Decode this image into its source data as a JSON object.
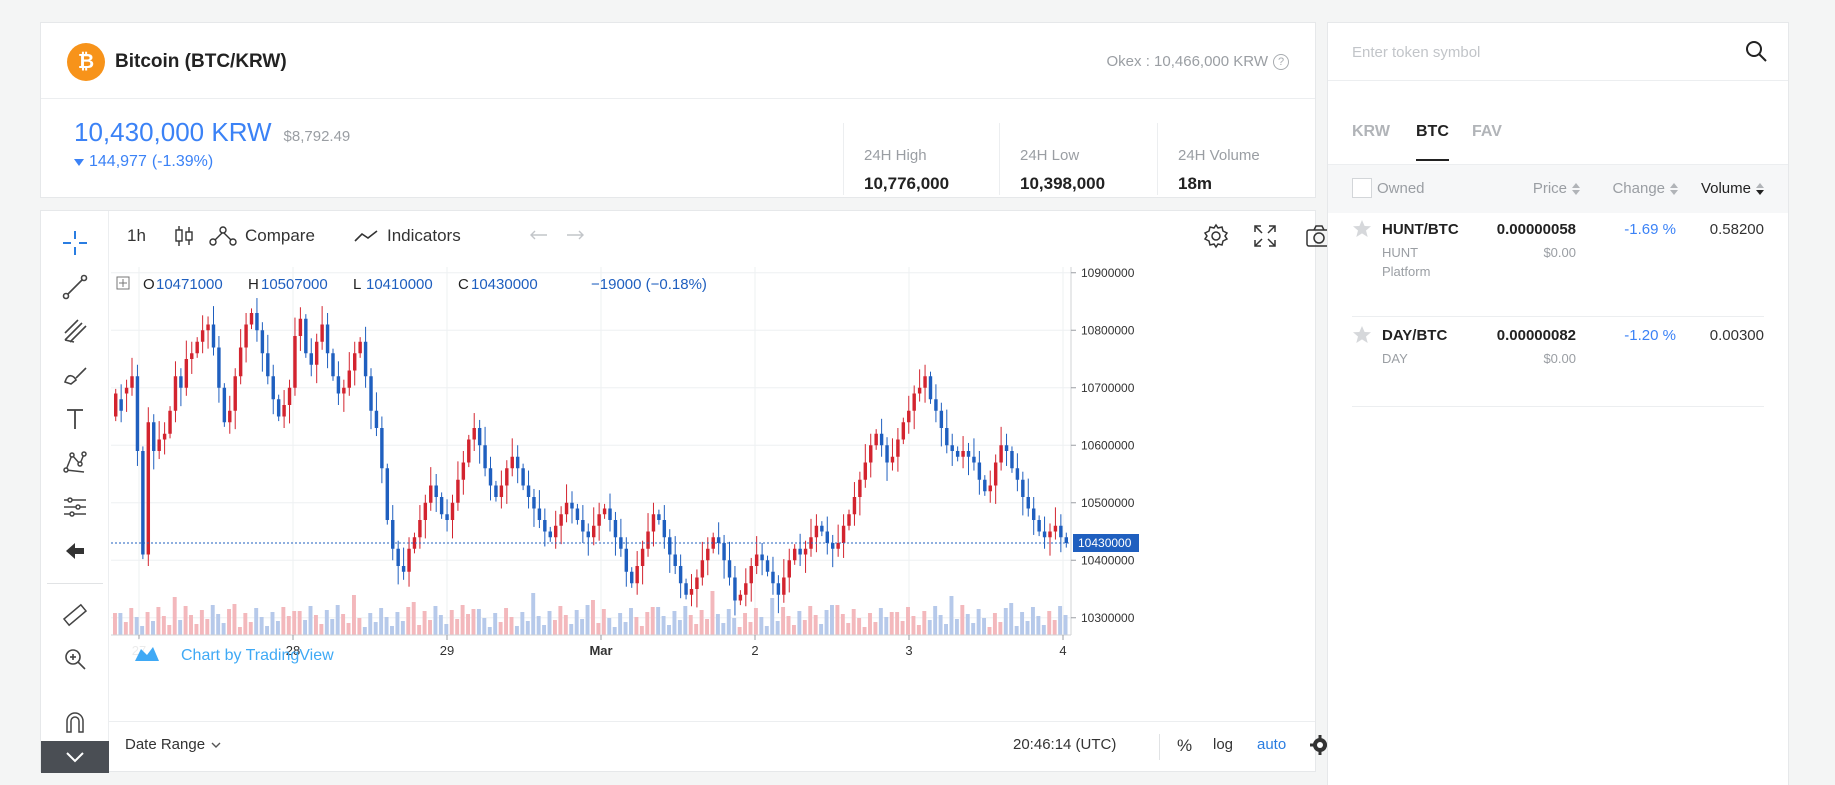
{
  "header": {
    "coin_symbol": "₿",
    "coin_name": "Bitcoin (BTC/KRW)",
    "exchange_ref": "Okex : 10,466,000 KRW",
    "help": "?",
    "price_krw": "10,430,000 KRW",
    "price_usd": "$8,792.49",
    "change_value": "144,977",
    "change_pct": "(-1.39%)",
    "stats": [
      {
        "label": "24H High",
        "value": "10,776,000"
      },
      {
        "label": "24H Low",
        "value": "10,398,000"
      },
      {
        "label": "24H Volume",
        "value": "18m"
      }
    ]
  },
  "toolbar": {
    "interval": "1h",
    "compare_label": "Compare",
    "indicators_label": "Indicators"
  },
  "chart_data": {
    "type": "candlestick",
    "ohlc_legend": {
      "o_label": "O",
      "o": "10471000",
      "h_label": "H",
      "h": "10507000",
      "l_label": "L",
      "l": "10410000",
      "c_label": "C",
      "c": "10430000",
      "change": "−19000 (−0.18%)"
    },
    "y_ticks": [
      "10900000",
      "10800000",
      "10700000",
      "10600000",
      "10500000",
      "10400000",
      "10300000"
    ],
    "ylim": [
      10270000,
      10910000
    ],
    "x_ticks": [
      "27",
      "28",
      "29",
      "Mar",
      "2",
      "3",
      "4"
    ],
    "last_price_label": "10430000",
    "last_price": 10430000,
    "watermark": "Chart by TradingView",
    "close_series": [
      10690000,
      10660000,
      10700000,
      10720000,
      10590000,
      10410000,
      10640000,
      10590000,
      10610000,
      10620000,
      10660000,
      10720000,
      10700000,
      10750000,
      10760000,
      10780000,
      10800000,
      10810000,
      10770000,
      10700000,
      10640000,
      10660000,
      10720000,
      10770000,
      10810000,
      10830000,
      10800000,
      10760000,
      10720000,
      10680000,
      10650000,
      10670000,
      10700000,
      10790000,
      10820000,
      10760000,
      10740000,
      10780000,
      10810000,
      10760000,
      10720000,
      10690000,
      10700000,
      10730000,
      10760000,
      10780000,
      10720000,
      10660000,
      10630000,
      10560000,
      10470000,
      10420000,
      10390000,
      10380000,
      10420000,
      10440000,
      10470000,
      10500000,
      10530000,
      10510000,
      10480000,
      10470000,
      10500000,
      10540000,
      10570000,
      10610000,
      10630000,
      10600000,
      10560000,
      10530000,
      10510000,
      10530000,
      10560000,
      10580000,
      10560000,
      10530000,
      10510000,
      10490000,
      10470000,
      10450000,
      10440000,
      10460000,
      10480000,
      10500000,
      10490000,
      10470000,
      10450000,
      10440000,
      10460000,
      10480000,
      10490000,
      10470000,
      10440000,
      10420000,
      10380000,
      10360000,
      10390000,
      10420000,
      10450000,
      10480000,
      10470000,
      10440000,
      10410000,
      10390000,
      10360000,
      10340000,
      10350000,
      10370000,
      10400000,
      10420000,
      10440000,
      10430000,
      10400000,
      10370000,
      10330000,
      10340000,
      10360000,
      10390000,
      10410000,
      10400000,
      10380000,
      10360000,
      10340000,
      10370000,
      10400000,
      10420000,
      10410000,
      10420000,
      10440000,
      10460000,
      10450000,
      10430000,
      10420000,
      10430000,
      10460000,
      10480000,
      10510000,
      10540000,
      10570000,
      10600000,
      10620000,
      10600000,
      10570000,
      10580000,
      10610000,
      10640000,
      10660000,
      10690000,
      10700000,
      10720000,
      10680000,
      10660000,
      10630000,
      10600000,
      10590000,
      10580000,
      10590000,
      10580000,
      10570000,
      10540000,
      10520000,
      10530000,
      10570000,
      10600000,
      10590000,
      10560000,
      10540000,
      10510000,
      10490000,
      10470000,
      10450000,
      10440000,
      10450000,
      10460000,
      10440000,
      10430000
    ],
    "open_series": [
      10650000,
      10680000,
      10690000,
      10700000,
      10720000,
      10590000,
      10410000,
      10640000,
      10590000,
      10610000,
      10620000,
      10660000,
      10720000,
      10700000,
      10750000,
      10760000,
      10780000,
      10800000,
      10810000,
      10770000,
      10700000,
      10640000,
      10660000,
      10720000,
      10770000,
      10810000,
      10830000,
      10800000,
      10760000,
      10720000,
      10680000,
      10650000,
      10670000,
      10700000,
      10790000,
      10820000,
      10760000,
      10740000,
      10780000,
      10810000,
      10760000,
      10720000,
      10690000,
      10700000,
      10730000,
      10760000,
      10780000,
      10720000,
      10660000,
      10630000,
      10560000,
      10470000,
      10420000,
      10390000,
      10380000,
      10420000,
      10440000,
      10470000,
      10500000,
      10530000,
      10510000,
      10480000,
      10470000,
      10500000,
      10540000,
      10570000,
      10610000,
      10630000,
      10600000,
      10560000,
      10530000,
      10510000,
      10530000,
      10560000,
      10580000,
      10560000,
      10530000,
      10510000,
      10490000,
      10470000,
      10450000,
      10440000,
      10460000,
      10480000,
      10500000,
      10490000,
      10470000,
      10450000,
      10440000,
      10460000,
      10480000,
      10490000,
      10470000,
      10440000,
      10420000,
      10380000,
      10360000,
      10390000,
      10420000,
      10450000,
      10480000,
      10470000,
      10440000,
      10410000,
      10390000,
      10360000,
      10340000,
      10350000,
      10370000,
      10400000,
      10420000,
      10440000,
      10430000,
      10400000,
      10370000,
      10330000,
      10340000,
      10360000,
      10390000,
      10410000,
      10400000,
      10380000,
      10360000,
      10340000,
      10370000,
      10400000,
      10420000,
      10410000,
      10420000,
      10440000,
      10460000,
      10450000,
      10430000,
      10420000,
      10430000,
      10460000,
      10480000,
      10510000,
      10540000,
      10570000,
      10600000,
      10620000,
      10600000,
      10570000,
      10580000,
      10610000,
      10640000,
      10660000,
      10690000,
      10700000,
      10720000,
      10680000,
      10660000,
      10630000,
      10600000,
      10590000,
      10580000,
      10590000,
      10580000,
      10570000,
      10540000,
      10520000,
      10530000,
      10570000,
      10600000,
      10590000,
      10560000,
      10540000,
      10510000,
      10490000,
      10470000,
      10450000,
      10440000,
      10450000,
      10460000,
      10440000,
      10471000
    ]
  },
  "bottom_bar": {
    "date_range": "Date Range",
    "time": "20:46:14 (UTC)",
    "percent": "%",
    "log": "log",
    "auto": "auto"
  },
  "sidebar": {
    "search_placeholder": "Enter token symbol",
    "tabs": [
      "KRW",
      "BTC",
      "FAV"
    ],
    "headers": {
      "owned": "Owned",
      "price": "Price",
      "change": "Change",
      "volume": "Volume"
    },
    "tokens": [
      {
        "pair": "HUNT/BTC",
        "name": "HUNT Platform",
        "price": "0.00000058",
        "usd": "$0.00",
        "change": "-1.69 %",
        "volume": "0.58200"
      },
      {
        "pair": "DAY/BTC",
        "name": "DAY",
        "price": "0.00000082",
        "usd": "$0.00",
        "change": "-1.20 %",
        "volume": "0.00300"
      }
    ]
  },
  "colors": {
    "accent": "#3b82f6",
    "up": "#d3242f",
    "down": "#1f5fbf",
    "brand": "#f7931a"
  }
}
